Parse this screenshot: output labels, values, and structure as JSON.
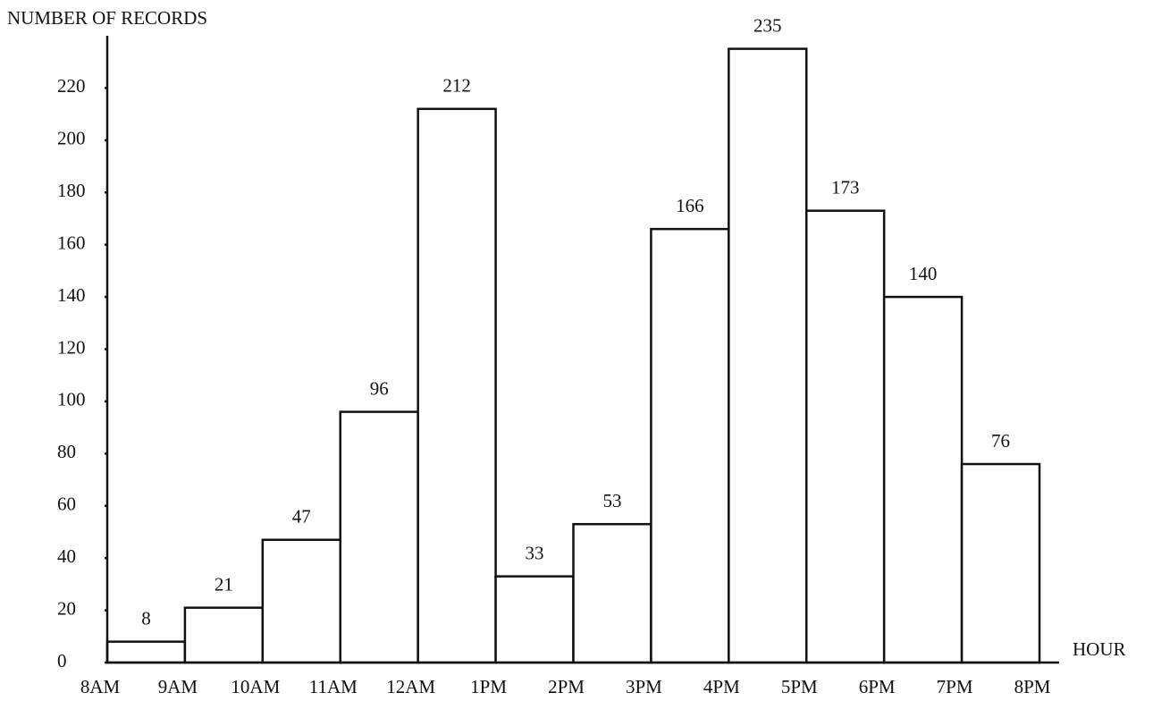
{
  "chart_data": {
    "type": "histogram",
    "y_label": "NUMBER OF RECORDS",
    "x_label": "HOUR",
    "bins": [
      "8AM",
      "9AM",
      "10AM",
      "11AM",
      "12AM",
      "1PM",
      "2PM",
      "3PM",
      "4PM",
      "5PM",
      "6PM",
      "7PM",
      "8PM"
    ],
    "values": [
      8,
      21,
      47,
      96,
      212,
      33,
      53,
      166,
      235,
      173,
      140,
      76
    ],
    "color": "#ffffff",
    "edge_color": "#111111",
    "ylim": [
      0,
      240
    ],
    "yticks": [
      0,
      20,
      40,
      60,
      80,
      100,
      120,
      140,
      160,
      180,
      200,
      220
    ],
    "grid": false
  }
}
